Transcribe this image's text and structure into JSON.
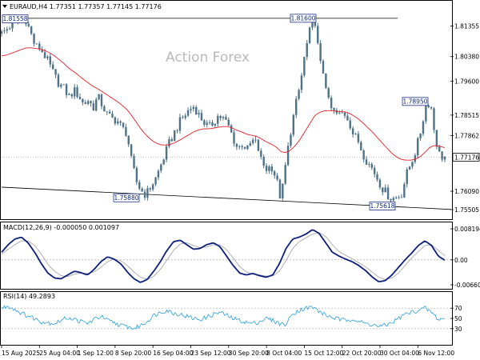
{
  "header": {
    "symbol_line": "EURAUD,H4  1.77351 1.77357 1.77145 1.77176",
    "watermark": "Action Forex"
  },
  "colors": {
    "candle": "#4f7289",
    "ema": "#e8202a",
    "trendline": "#000000",
    "macd_line": "#0b1f7c",
    "macd_signal": "#a9a9a9",
    "rsi_line": "#2a9fdc",
    "grid_dotted": "#aaaaaa",
    "price_box_bg": "#ffffff"
  },
  "chart_data": [
    {
      "type": "candlestick",
      "panel": "price",
      "y_ticks": [
        "1.81355",
        "1.80380",
        "1.79600",
        "1.78515",
        "1.77862",
        "1.76090",
        "1.75505"
      ],
      "ylim": [
        1.7525,
        1.818
      ],
      "current_price": "1.77176",
      "price_points": [
        1.8111,
        1.8125,
        1.8139,
        1.8146,
        1.8158,
        1.8158,
        1.8115,
        1.807,
        1.8065,
        1.804,
        1.801,
        1.7975,
        1.795,
        1.7935,
        1.791,
        1.793,
        1.7915,
        1.7885,
        1.79,
        1.7875,
        1.791,
        1.788,
        1.785,
        1.784,
        1.7835,
        1.781,
        1.7795,
        1.77,
        1.764,
        1.761,
        1.7598,
        1.7625,
        1.765,
        1.769,
        1.773,
        1.777,
        1.78,
        1.783,
        1.785,
        1.787,
        1.788,
        1.785,
        1.783,
        1.781,
        1.783,
        1.785,
        1.784,
        1.782,
        1.778,
        1.7745,
        1.776,
        1.774,
        1.777,
        1.776,
        1.77,
        1.768,
        1.769,
        1.765,
        1.758,
        1.77,
        1.78,
        1.788,
        1.795,
        1.805,
        1.812,
        1.816,
        1.802,
        1.798,
        1.788,
        1.786,
        1.785,
        1.786,
        1.784,
        1.779,
        1.777,
        1.773,
        1.77,
        1.768,
        1.765,
        1.762,
        1.76,
        1.7585,
        1.759,
        1.76,
        1.766,
        1.77,
        1.774,
        1.78,
        1.788,
        1.7895,
        1.778,
        1.772,
        1.7718
      ],
      "ema_points": [
        1.804,
        1.8043,
        1.8048,
        1.8054,
        1.806,
        1.8065,
        1.8066,
        1.8064,
        1.8062,
        1.8057,
        1.805,
        1.804,
        1.8028,
        1.8015,
        1.8,
        1.799,
        1.7978,
        1.7965,
        1.7954,
        1.7943,
        1.7935,
        1.7925,
        1.7915,
        1.7905,
        1.7895,
        1.7883,
        1.787,
        1.785,
        1.7828,
        1.7806,
        1.7788,
        1.7773,
        1.7763,
        1.7757,
        1.7756,
        1.7758,
        1.7764,
        1.7772,
        1.7781,
        1.779,
        1.7799,
        1.7805,
        1.7808,
        1.7808,
        1.781,
        1.7813,
        1.7815,
        1.7815,
        1.781,
        1.7802,
        1.7797,
        1.779,
        1.7787,
        1.7784,
        1.7775,
        1.7766,
        1.7759,
        1.775,
        1.7735,
        1.7732,
        1.774,
        1.7755,
        1.7775,
        1.78,
        1.7825,
        1.785,
        1.786,
        1.7865,
        1.7866,
        1.7865,
        1.7863,
        1.7862,
        1.7859,
        1.785,
        1.784,
        1.7827,
        1.7812,
        1.7797,
        1.778,
        1.7763,
        1.7746,
        1.773,
        1.7718,
        1.771,
        1.7708,
        1.7708,
        1.7712,
        1.772,
        1.7735,
        1.775,
        1.7755,
        1.7752,
        1.7748
      ],
      "trendline": {
        "start": 1.7622,
        "end": 1.7551
      },
      "horizontal_line": 1.816,
      "callouts": [
        "1.81558",
        "1.81600",
        "1.78950",
        "1.75880",
        "1.75618"
      ]
    },
    {
      "type": "line",
      "panel": "macd",
      "title": "MACD(12,26,9) -0.000050 0.001097",
      "y_ticks": [
        "0.008194",
        "0.00",
        "-0.006604"
      ],
      "ylim": [
        -0.0066,
        0.0082
      ],
      "series": [
        {
          "name": "MACD",
          "values": [
            0.002,
            0.004,
            0.0055,
            0.006,
            0.0045,
            0.002,
            -0.001,
            -0.0035,
            -0.0048,
            -0.005,
            -0.004,
            -0.003,
            -0.0034,
            -0.004,
            -0.0025,
            -0.0005,
            0.0008,
            0.0002,
            -0.001,
            -0.0032,
            -0.005,
            -0.006,
            -0.0052,
            -0.003,
            -0.0005,
            0.0025,
            0.0048,
            0.0052,
            0.004,
            0.0028,
            0.003,
            0.004,
            0.0045,
            0.0035,
            0.001,
            -0.0015,
            -0.0035,
            -0.004,
            -0.0036,
            -0.0042,
            -0.0046,
            -0.004,
            -0.001,
            0.003,
            0.0055,
            0.006,
            0.0068,
            0.008,
            0.007,
            0.0045,
            0.002,
            0.001,
            0.0002,
            -0.0005,
            -0.0015,
            -0.0028,
            -0.0045,
            -0.0058,
            -0.0055,
            -0.004,
            -0.002,
            0.0,
            0.0018,
            0.0038,
            0.005,
            0.0038,
            0.001,
            -0.0001
          ]
        },
        {
          "name": "Signal",
          "values": [
            0.0015,
            0.0028,
            0.004,
            0.005,
            0.005,
            0.0038,
            0.0015,
            -0.0012,
            -0.003,
            -0.0042,
            -0.0044,
            -0.0038,
            -0.0035,
            -0.0036,
            -0.0032,
            -0.002,
            -0.0005,
            0.0002,
            -0.0002,
            -0.0015,
            -0.0032,
            -0.0046,
            -0.0052,
            -0.0044,
            -0.0025,
            0.0,
            0.0025,
            0.0042,
            0.0045,
            0.0038,
            0.0032,
            0.0034,
            0.004,
            0.004,
            0.0027,
            0.0005,
            -0.0018,
            -0.0032,
            -0.0038,
            -0.004,
            -0.0043,
            -0.0043,
            -0.003,
            -0.0002,
            0.003,
            0.0048,
            0.0058,
            0.0068,
            0.0072,
            0.0062,
            0.004,
            0.0022,
            0.0012,
            0.0003,
            -0.0008,
            -0.0018,
            -0.0032,
            -0.0046,
            -0.0052,
            -0.0048,
            -0.0035,
            -0.0015,
            0.0005,
            0.0022,
            0.0038,
            0.004,
            0.0025,
            0.0011
          ]
        }
      ]
    },
    {
      "type": "line",
      "panel": "rsi",
      "title": "RSI(14) 49.2893",
      "y_ticks": [
        "70",
        "50",
        "30"
      ],
      "ylim": [
        0,
        100
      ],
      "values": [
        70,
        74,
        68,
        60,
        55,
        50,
        44,
        42,
        40,
        46,
        52,
        48,
        44,
        40,
        48,
        54,
        46,
        42,
        36,
        34,
        30,
        36,
        44,
        56,
        62,
        66,
        60,
        58,
        54,
        50,
        48,
        52,
        58,
        62,
        56,
        50,
        46,
        42,
        40,
        44,
        50,
        46,
        40,
        38,
        60,
        66,
        70,
        72,
        64,
        56,
        52,
        48,
        46,
        50,
        44,
        40,
        38,
        34,
        36,
        42,
        50,
        58,
        62,
        66,
        70,
        62,
        48,
        50
      ]
    }
  ],
  "x_axis": {
    "labels": [
      "15 Aug 2025",
      "25 Aug 04:00",
      "1 Sep 12:00",
      "8 Sep 20:00",
      "16 Sep 04:00",
      "23 Sep 12:00",
      "30 Sep 20:00",
      "8 Oct 04:00",
      "15 Oct 12:00",
      "22 Oct 20:00",
      "30 Oct 04:00",
      "6 Nov 12:00"
    ]
  }
}
